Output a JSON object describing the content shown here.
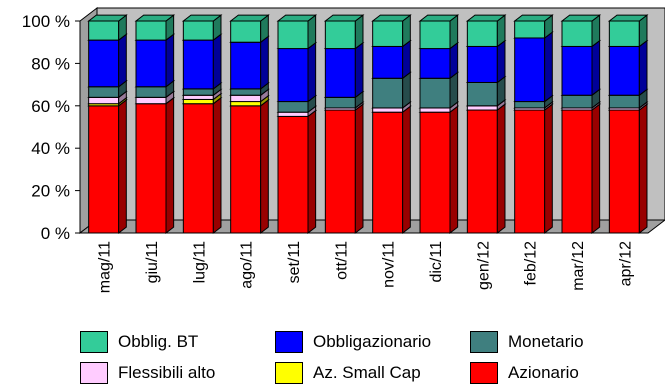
{
  "chart_data": {
    "type": "bar",
    "stacked": true,
    "three_d": true,
    "categories": [
      "mag/11",
      "giu/11",
      "lug/11",
      "ago/11",
      "set/11",
      "ott/11",
      "nov/11",
      "dic/11",
      "gen/12",
      "feb/12",
      "mar/12",
      "apr/12"
    ],
    "y_tick_labels": [
      "0 %",
      "20 %",
      "40 %",
      "60 %",
      "80 %",
      "100 %"
    ],
    "ylim": [
      0,
      100
    ],
    "grid": false,
    "legend_position": "bottom",
    "series": [
      {
        "name": "Azionario",
        "color": "#ff0000",
        "values": [
          60,
          61,
          61,
          60,
          55,
          58,
          57,
          57,
          58,
          58,
          58,
          58
        ]
      },
      {
        "name": "Az. Small Cap",
        "color": "#ffff00",
        "values": [
          1,
          0,
          2,
          2,
          0,
          0,
          0,
          0,
          0,
          0,
          0,
          0
        ]
      },
      {
        "name": "Flessibili alto",
        "color": "#ffccff",
        "values": [
          3,
          3,
          2,
          3,
          2,
          1,
          2,
          2,
          2,
          1,
          1,
          1
        ]
      },
      {
        "name": "Monetario",
        "color": "#3f7f7f",
        "values": [
          5,
          5,
          3,
          3,
          5,
          5,
          14,
          14,
          11,
          3,
          6,
          6
        ]
      },
      {
        "name": "Obbligazionario",
        "color": "#0000ff",
        "values": [
          22,
          22,
          23,
          22,
          25,
          23,
          15,
          14,
          17,
          30,
          23,
          23
        ]
      },
      {
        "name": "Obblig. BT",
        "color": "#33cc99",
        "values": [
          9,
          9,
          9,
          10,
          13,
          13,
          12,
          13,
          12,
          8,
          12,
          12
        ]
      }
    ]
  }
}
